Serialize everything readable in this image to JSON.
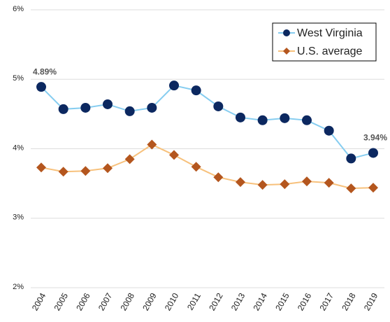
{
  "chart_data": {
    "type": "line",
    "categories": [
      "2004",
      "2005",
      "2006",
      "2007",
      "2008",
      "2009",
      "2010",
      "2011",
      "2012",
      "2013",
      "2014",
      "2015",
      "2016",
      "2017",
      "2018",
      "2019"
    ],
    "ylim": [
      2,
      6
    ],
    "yticks": [
      {
        "value": 2,
        "label": "2%"
      },
      {
        "value": 3,
        "label": "3%"
      },
      {
        "value": 4,
        "label": "4%"
      },
      {
        "value": 5,
        "label": "5%"
      },
      {
        "value": 6,
        "label": "6%"
      }
    ],
    "grid": true,
    "legend": "upper right",
    "series": [
      {
        "name": "West Virginia",
        "color": "#0c2860",
        "line_color": "#86cdf0",
        "marker": "circle",
        "values": [
          4.89,
          4.57,
          4.59,
          4.64,
          4.54,
          4.59,
          4.91,
          4.84,
          4.61,
          4.45,
          4.41,
          4.44,
          4.41,
          4.26,
          3.86,
          3.94
        ],
        "value_labels": [
          "4.89%",
          null,
          null,
          null,
          null,
          null,
          null,
          null,
          null,
          null,
          null,
          null,
          null,
          null,
          null,
          "3.94%"
        ]
      },
      {
        "name": "U.S. average",
        "color": "#b4561e",
        "line_color": "#f7c17c",
        "marker": "diamond",
        "values": [
          3.73,
          3.67,
          3.68,
          3.72,
          3.85,
          4.06,
          3.91,
          3.74,
          3.59,
          3.52,
          3.48,
          3.49,
          3.53,
          3.51,
          3.43,
          3.44
        ]
      }
    ]
  }
}
